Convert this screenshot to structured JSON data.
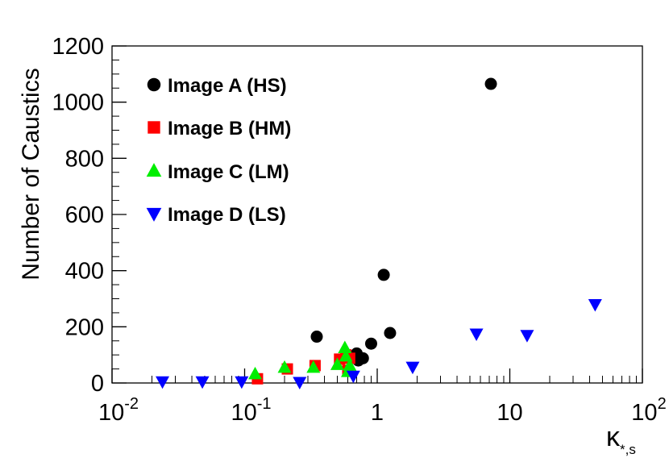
{
  "chart_data": {
    "type": "scatter",
    "title": "",
    "ylabel": "Number of Caustics",
    "xlabel_main": "κ",
    "xlabel_sub": "*,s",
    "x_scale": "log",
    "xlim": [
      0.01,
      100
    ],
    "ylim": [
      0,
      1200
    ],
    "grid": false,
    "legend_position": "top-left",
    "x_ticks": [
      {
        "base": "10",
        "exp": "-2",
        "value": 0.01
      },
      {
        "base": "10",
        "exp": "-1",
        "value": 0.1
      },
      {
        "base": "1",
        "exp": "",
        "value": 1
      },
      {
        "base": "10",
        "exp": "",
        "value": 10
      },
      {
        "base": "10",
        "exp": "2",
        "value": 100
      }
    ],
    "y_ticks": [
      {
        "label": "0",
        "value": 0
      },
      {
        "label": "200",
        "value": 200
      },
      {
        "label": "400",
        "value": 400
      },
      {
        "label": "600",
        "value": 600
      },
      {
        "label": "800",
        "value": 800
      },
      {
        "label": "1000",
        "value": 1000
      },
      {
        "label": "1200",
        "value": 1200
      }
    ],
    "series": [
      {
        "name": "Image A (HS)",
        "marker": "circle",
        "color": "#000000",
        "points": [
          [
            0.35,
            165
          ],
          [
            0.7,
            105
          ],
          [
            0.72,
            80
          ],
          [
            0.78,
            88
          ],
          [
            0.9,
            140
          ],
          [
            1.12,
            385
          ],
          [
            1.25,
            178
          ],
          [
            7.2,
            1065
          ]
        ]
      },
      {
        "name": "Image B (HM)",
        "marker": "square",
        "color": "#ff0000",
        "points": [
          [
            0.125,
            15
          ],
          [
            0.21,
            50
          ],
          [
            0.34,
            62
          ],
          [
            0.52,
            85
          ],
          [
            0.58,
            100
          ],
          [
            0.6,
            45
          ],
          [
            0.62,
            88
          ]
        ]
      },
      {
        "name": "Image C (LM)",
        "marker": "triangle-up",
        "color": "#00ee00",
        "points": [
          [
            0.12,
            32
          ],
          [
            0.2,
            55
          ],
          [
            0.33,
            55
          ],
          [
            0.5,
            65
          ],
          [
            0.57,
            125
          ],
          [
            0.58,
            95
          ],
          [
            0.6,
            40
          ],
          [
            0.62,
            62
          ]
        ]
      },
      {
        "name": "Image D (LS)",
        "marker": "triangle-down",
        "color": "#0000ff",
        "points": [
          [
            0.024,
            5
          ],
          [
            0.048,
            5
          ],
          [
            0.095,
            5
          ],
          [
            0.26,
            3
          ],
          [
            0.66,
            25
          ],
          [
            1.85,
            57
          ],
          [
            5.6,
            175
          ],
          [
            13.5,
            170
          ],
          [
            44,
            280
          ]
        ]
      }
    ]
  }
}
